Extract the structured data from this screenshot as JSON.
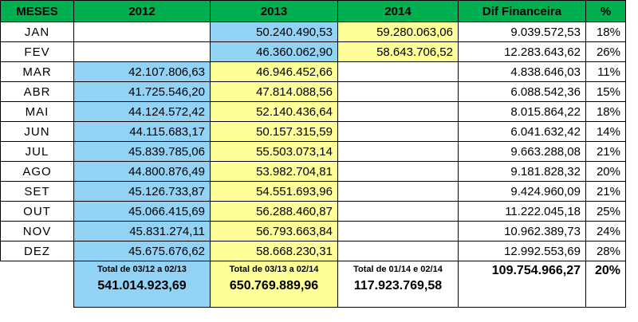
{
  "headers": [
    "MESES",
    "2012",
    "2013",
    "2014",
    "Dif Financeira",
    "%"
  ],
  "rows": [
    {
      "month": "JAN",
      "y2012": "",
      "y2013": "50.240.490,53",
      "y2014": "59.280.063,06",
      "dif": "9.039.572,53",
      "pct": "18%"
    },
    {
      "month": "FEV",
      "y2012": "",
      "y2013": "46.360.062,90",
      "y2014": "58.643.706,52",
      "dif": "12.283.643,62",
      "pct": "26%"
    },
    {
      "month": "MAR",
      "y2012": "42.107.806,63",
      "y2013": "46.946.452,66",
      "y2014": "",
      "dif": "4.838.646,03",
      "pct": "11%"
    },
    {
      "month": "ABR",
      "y2012": "41.725.546,20",
      "y2013": "47.814.088,56",
      "y2014": "",
      "dif": "6.088.542,36",
      "pct": "15%"
    },
    {
      "month": "MAI",
      "y2012": "44.124.572,42",
      "y2013": "52.140.436,64",
      "y2014": "",
      "dif": "8.015.864,22",
      "pct": "18%"
    },
    {
      "month": "JUN",
      "y2012": "44.115.683,17",
      "y2013": "50.157.315,59",
      "y2014": "",
      "dif": "6.041.632,42",
      "pct": "14%"
    },
    {
      "month": "JUL",
      "y2012": "45.839.785,06",
      "y2013": "55.503.073,14",
      "y2014": "",
      "dif": "9.663.288,08",
      "pct": "21%"
    },
    {
      "month": "AGO",
      "y2012": "44.800.876,49",
      "y2013": "53.982.704,81",
      "y2014": "",
      "dif": "9.181.828,32",
      "pct": "20%"
    },
    {
      "month": "SET",
      "y2012": "45.126.733,87",
      "y2013": "54.551.693,96",
      "y2014": "",
      "dif": "9.424.960,09",
      "pct": "21%"
    },
    {
      "month": "OUT",
      "y2012": "45.066.415,69",
      "y2013": "56.288.460,87",
      "y2014": "",
      "dif": "11.222.045,18",
      "pct": "25%"
    },
    {
      "month": "NOV",
      "y2012": "45.831.274,11",
      "y2013": "56.793.663,84",
      "y2014": "",
      "dif": "10.962.389,73",
      "pct": "24%"
    },
    {
      "month": "DEZ",
      "y2012": "45.675.676,62",
      "y2013": "58.668.230,31",
      "y2014": "",
      "dif": "12.992.553,69",
      "pct": "28%"
    }
  ],
  "totals": {
    "y2012_label": "Total de 03/12 a 02/13",
    "y2012_value": "541.014.923,69",
    "y2013_label": "Total de 03/13 a 02/14",
    "y2013_value": "650.769.889,96",
    "y2014_label": "Total de 01/14 e 02/14",
    "y2014_value": "117.923.769,58",
    "dif_value": "109.754.966,27",
    "pct_value": "20%"
  },
  "colors": {
    "header": "#00b050",
    "blue": "#92d3f5",
    "yellow": "#ffff99"
  }
}
